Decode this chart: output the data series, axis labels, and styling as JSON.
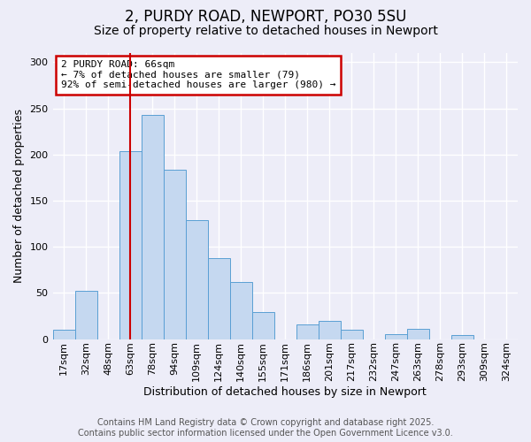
{
  "title": "2, PURDY ROAD, NEWPORT, PO30 5SU",
  "subtitle": "Size of property relative to detached houses in Newport",
  "xlabel": "Distribution of detached houses by size in Newport",
  "ylabel": "Number of detached properties",
  "bin_labels": [
    "17sqm",
    "32sqm",
    "48sqm",
    "63sqm",
    "78sqm",
    "94sqm",
    "109sqm",
    "124sqm",
    "140sqm",
    "155sqm",
    "171sqm",
    "186sqm",
    "201sqm",
    "217sqm",
    "232sqm",
    "247sqm",
    "263sqm",
    "278sqm",
    "293sqm",
    "309sqm",
    "324sqm"
  ],
  "bar_values": [
    10,
    52,
    0,
    204,
    243,
    184,
    129,
    88,
    62,
    29,
    0,
    16,
    20,
    10,
    0,
    5,
    11,
    0,
    4,
    0,
    0
  ],
  "bar_color": "#c5d8f0",
  "bar_edge_color": "#5a9fd4",
  "vline_x": 3.5,
  "vline_color": "#cc0000",
  "annotation_title": "2 PURDY ROAD: 66sqm",
  "annotation_line1": "← 7% of detached houses are smaller (79)",
  "annotation_line2": "92% of semi-detached houses are larger (980) →",
  "annotation_box_color": "#ffffff",
  "annotation_box_edgecolor": "#cc0000",
  "ylim": [
    0,
    310
  ],
  "yticks": [
    0,
    50,
    100,
    150,
    200,
    250,
    300
  ],
  "footer1": "Contains HM Land Registry data © Crown copyright and database right 2025.",
  "footer2": "Contains public sector information licensed under the Open Government Licence v3.0.",
  "background_color": "#ededf8",
  "grid_color": "#ffffff",
  "title_fontsize": 12,
  "subtitle_fontsize": 10,
  "axis_label_fontsize": 9,
  "tick_fontsize": 8,
  "annotation_fontsize": 8,
  "footer_fontsize": 7
}
